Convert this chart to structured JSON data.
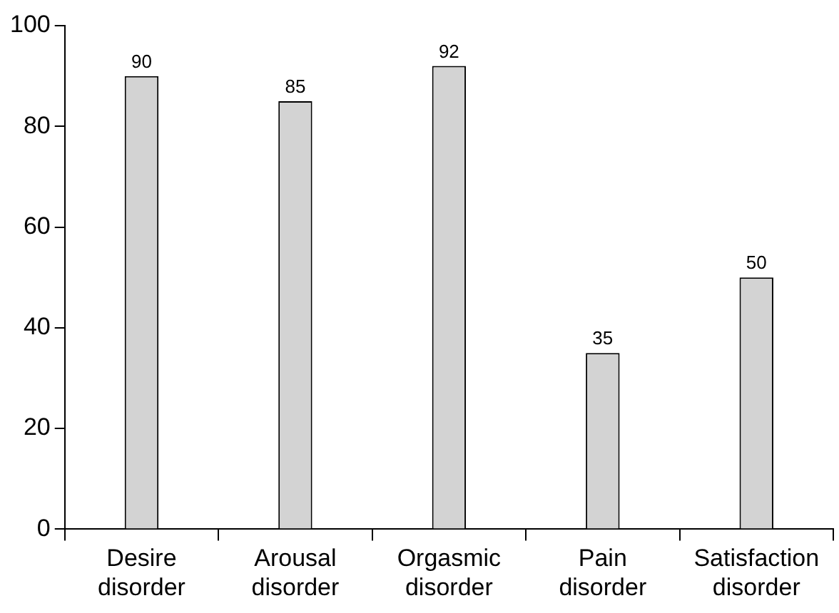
{
  "chart_data": {
    "type": "bar",
    "categories": [
      "Desire disorder",
      "Arousal disorder",
      "Orgasmic disorder",
      "Pain disorder",
      "Satisfaction disorder"
    ],
    "values": [
      90,
      85,
      92,
      35,
      50
    ],
    "color": "#d3d3d3",
    "ylim": [
      0,
      100
    ],
    "yticks": [
      0,
      20,
      40,
      60,
      80,
      100
    ],
    "grid": false,
    "legend": false,
    "data_labels": true
  }
}
